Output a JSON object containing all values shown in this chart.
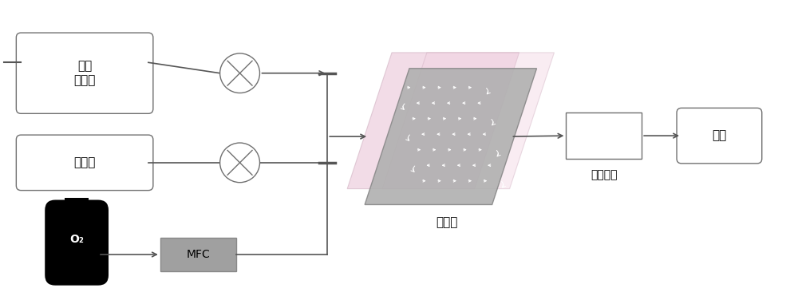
{
  "bg_color": "#ffffff",
  "label_substrate": "底物\n催化剂",
  "label_alkali": "碱溶液",
  "label_mfc": "MFC",
  "label_sep": "分离单元",
  "label_product": "产品",
  "label_o2": "O₂",
  "label_reactor": "反应器",
  "line_color": "#555555",
  "box_ec": "#707070",
  "mfc_fc": "#a0a0a0",
  "reactor_gray": "#aaaaaa",
  "reactor_pink1": "#d4a0bc",
  "reactor_pink2": "#e0b8cc"
}
